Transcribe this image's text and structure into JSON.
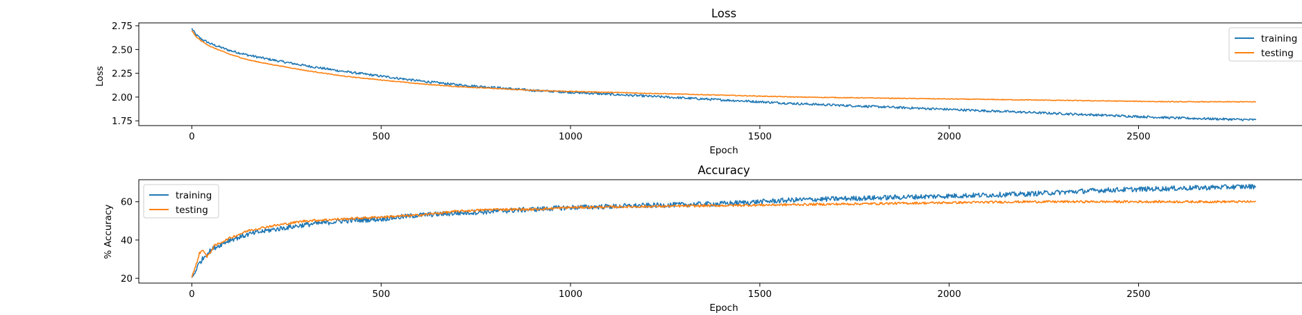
{
  "chart_data": [
    {
      "type": "line",
      "title": "Loss",
      "xlabel": "Epoch",
      "ylabel": "Loss",
      "xlim": [
        -140,
        2950
      ],
      "ylim": [
        1.7,
        2.78
      ],
      "xticks": [
        0,
        500,
        1000,
        1500,
        2000,
        2500
      ],
      "yticks": [
        1.75,
        2.0,
        2.25,
        2.5,
        2.75
      ],
      "ytick_labels": [
        "1.75",
        "2.00",
        "2.25",
        "2.50",
        "2.75"
      ],
      "legend": {
        "placement": "upper right",
        "entries": [
          "training",
          "testing"
        ]
      },
      "grid": false,
      "series": [
        {
          "name": "training",
          "color": "#1f77b4",
          "x": [
            0,
            10,
            25,
            50,
            100,
            150,
            200,
            300,
            400,
            500,
            600,
            700,
            800,
            900,
            1000,
            1200,
            1400,
            1600,
            1800,
            2000,
            2200,
            2400,
            2600,
            2810
          ],
          "y": [
            2.72,
            2.66,
            2.61,
            2.56,
            2.49,
            2.44,
            2.4,
            2.33,
            2.27,
            2.22,
            2.17,
            2.13,
            2.1,
            2.07,
            2.05,
            2.01,
            1.97,
            1.93,
            1.9,
            1.87,
            1.84,
            1.81,
            1.78,
            1.76
          ],
          "noise": 0.012
        },
        {
          "name": "testing",
          "color": "#ff7f0e",
          "x": [
            0,
            10,
            25,
            50,
            100,
            150,
            200,
            300,
            400,
            500,
            600,
            700,
            800,
            900,
            1000,
            1200,
            1400,
            1600,
            1800,
            2000,
            2200,
            2400,
            2600,
            2810
          ],
          "y": [
            2.7,
            2.64,
            2.59,
            2.53,
            2.45,
            2.39,
            2.35,
            2.28,
            2.22,
            2.18,
            2.14,
            2.11,
            2.09,
            2.07,
            2.06,
            2.04,
            2.02,
            2.0,
            1.99,
            1.98,
            1.97,
            1.96,
            1.95,
            1.95
          ],
          "noise": 0.004
        }
      ]
    },
    {
      "type": "line",
      "title": "Accuracy",
      "xlabel": "Epoch",
      "ylabel": "% Accuracy",
      "xlim": [
        -140,
        2950
      ],
      "ylim": [
        17.5,
        71.5
      ],
      "xticks": [
        0,
        500,
        1000,
        1500,
        2000,
        2500
      ],
      "yticks": [
        20,
        40,
        60
      ],
      "ytick_labels": [
        "20",
        "40",
        "60"
      ],
      "legend": {
        "placement": "upper left",
        "entries": [
          "training",
          "testing"
        ]
      },
      "grid": false,
      "series": [
        {
          "name": "training",
          "color": "#1f77b4",
          "x": [
            0,
            10,
            20,
            40,
            60,
            100,
            150,
            200,
            300,
            400,
            500,
            600,
            700,
            800,
            900,
            1000,
            1200,
            1400,
            1600,
            1800,
            2000,
            2200,
            2400,
            2600,
            2810
          ],
          "y": [
            20,
            24,
            28,
            33,
            36,
            40,
            43,
            45,
            48,
            50,
            51,
            53,
            54,
            55,
            56,
            57,
            58,
            59,
            61,
            62,
            63,
            64,
            66,
            67,
            68
          ],
          "noise": 1.3
        },
        {
          "name": "testing",
          "color": "#ff7f0e",
          "x": [
            0,
            10,
            20,
            30,
            40,
            60,
            100,
            150,
            200,
            300,
            400,
            500,
            600,
            700,
            800,
            900,
            1000,
            1200,
            1400,
            1600,
            1800,
            2000,
            2200,
            2400,
            2600,
            2810
          ],
          "y": [
            21,
            26,
            33,
            35,
            31,
            37,
            41,
            45,
            47,
            50,
            51,
            52,
            53,
            55,
            56,
            56,
            57,
            57.5,
            58,
            58.5,
            59,
            59.5,
            60,
            60,
            60,
            60
          ],
          "noise": 0.6
        }
      ]
    }
  ]
}
